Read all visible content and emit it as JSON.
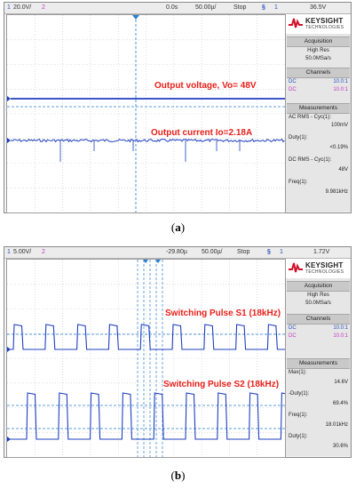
{
  "figure_a": {
    "caption_open": "(",
    "caption_letter": "a",
    "caption_close": ")",
    "topbar": {
      "ch1_num": "1",
      "ch1_scale": "20.0V/",
      "ch2_num": "2",
      "time_offset": "0.0s",
      "time_scale": "50.00µ/",
      "run_state": "Stop",
      "trig_marker": "§",
      "trig_ch": "1",
      "trig_level": "36.5V"
    },
    "panel": {
      "brand": "KEYSIGHT",
      "brand_sub": "TECHNOLOGIES",
      "acq_head": "Acquisition",
      "acq_mode": "High Res",
      "acq_rate": "50.0MSa/s",
      "ch_head": "Channels",
      "ch_rows": [
        {
          "label": "DC",
          "probe": "10.0:1"
        },
        {
          "label": "DC",
          "probe": "10.0:1"
        }
      ],
      "meas_head": "Measurements",
      "measurements": [
        {
          "name": "AC RMS - Cyc(1):",
          "value": "100mV"
        },
        {
          "name": "Duty(1):",
          "value": "<0.19%"
        },
        {
          "name": "DC RMS - Cyc(1):",
          "value": "48V"
        },
        {
          "name": "Freq(1):",
          "value": "9.981kHz"
        }
      ]
    },
    "annotations": {
      "voltage": "Output voltage, Vo= 48V",
      "current": "Output current Io=2.18A"
    }
  },
  "figure_b": {
    "caption_open": "(",
    "caption_letter": "b",
    "caption_close": ")",
    "topbar": {
      "ch1_num": "1",
      "ch1_scale": "5.00V/",
      "ch2_num": "2",
      "time_offset": "-29.80µ",
      "time_scale": "50.00µ/",
      "run_state": "Stop",
      "trig_marker": "§",
      "trig_ch": "1",
      "trig_level": "1.72V"
    },
    "panel": {
      "brand": "KEYSIGHT",
      "brand_sub": "TECHNOLOGIES",
      "acq_head": "Acquisition",
      "acq_mode": "High Res",
      "acq_rate": "50.0MSa/s",
      "ch_head": "Channels",
      "ch_rows": [
        {
          "label": "DC",
          "probe": "10.0:1"
        },
        {
          "label": "DC",
          "probe": "10.0:1"
        }
      ],
      "meas_head": "Measurements",
      "measurements": [
        {
          "name": "Max(1):",
          "value": "14.6V"
        },
        {
          "name": "-Duty(1):",
          "value": "69.4%"
        },
        {
          "name": "Freq(1):",
          "value": "18.01kHz"
        },
        {
          "name": "Duty(1):",
          "value": "30.6%"
        }
      ]
    },
    "annotations": {
      "s1": "Switching Pulse S1 (18kHz)",
      "s2": "Switching Pulse S2 (18kHz)"
    }
  },
  "colors": {
    "trace_blue": "#1f3fbf",
    "annotation_red": "#e8201a",
    "grid_line": "#c8c8c8",
    "marker_blue": "#2a7fd0"
  },
  "chart_data": [
    {
      "type": "line",
      "series": [
        {
          "values": [
            48,
            48
          ]
        },
        {
          "values": [
            2.18,
            2.18
          ]
        }
      ],
      "annotations": [
        "Output voltage, Vo= 48V",
        "Output current Io=2.18A"
      ],
      "grid": true
    },
    {
      "type": "line",
      "series": [
        {
          "frequency_khz": 18.01,
          "duty_percent": 30.6,
          "max_v": 14.6
        },
        {
          "frequency_khz": 18.01,
          "duty_percent": 30.6
        }
      ],
      "annotations": [
        "Switching Pulse S1 (18kHz)",
        "Switching Pulse S2 (18kHz)"
      ],
      "grid": true
    }
  ]
}
